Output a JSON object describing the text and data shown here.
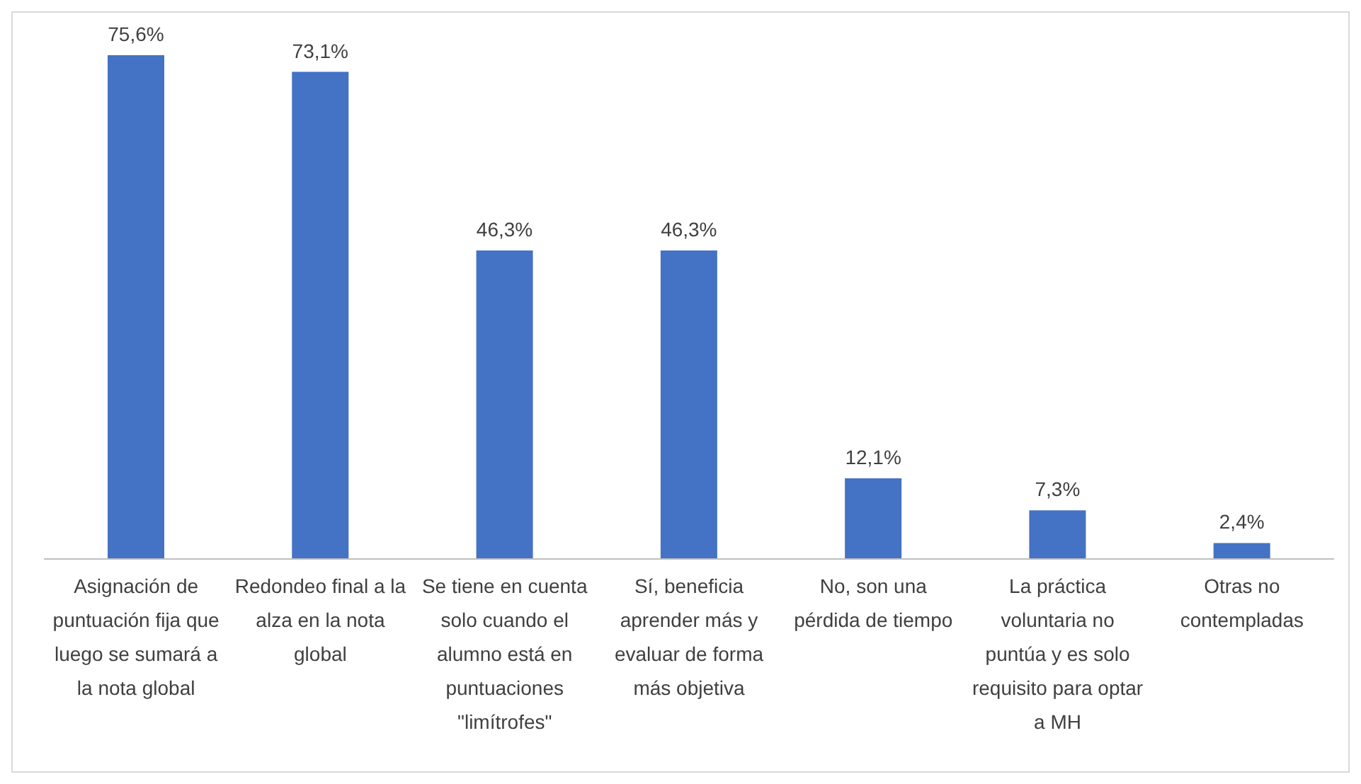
{
  "chart_data": {
    "type": "bar",
    "categories": [
      "Asignación de puntuación fija que luego se sumará a la nota global",
      "Redondeo final a la alza en la nota global",
      "Se tiene en cuenta solo cuando el alumno está en puntuaciones \"limítrofes\"",
      "Sí, beneficia aprender más y evaluar de forma más objetiva",
      "No, son una pérdida de tiempo",
      "La práctica voluntaria no puntúa y es solo requisito para optar a MH",
      "Otras no contempladas"
    ],
    "values": [
      75.6,
      73.1,
      46.3,
      46.3,
      12.1,
      7.3,
      2.4
    ],
    "value_labels": [
      "75,6%",
      "73,1%",
      "46,3%",
      "46,3%",
      "12,1%",
      "7,3%",
      "2,4%"
    ],
    "color": "#4472c4",
    "grid": false,
    "legend": false
  }
}
